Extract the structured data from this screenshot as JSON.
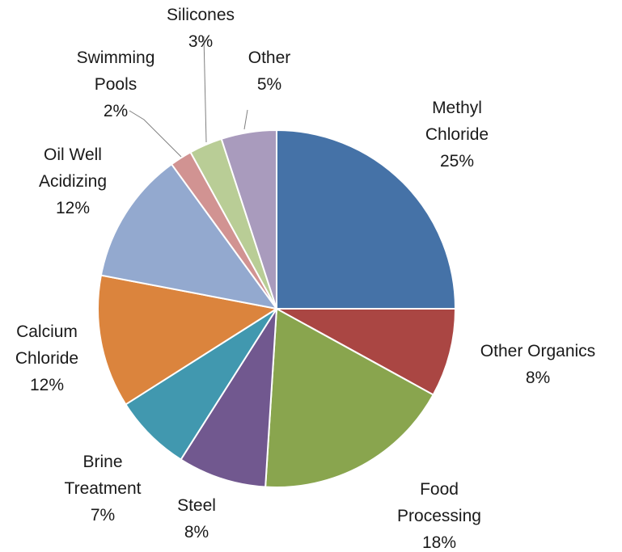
{
  "chart_data": {
    "type": "pie",
    "title": "",
    "unit": "%",
    "slices": [
      {
        "label": [
          "Methyl",
          "Chloride"
        ],
        "value": 25,
        "value_label": "25%",
        "color": "#4572A7"
      },
      {
        "label": [
          "Other Organics"
        ],
        "value": 8,
        "value_label": "8%",
        "color": "#AA4643"
      },
      {
        "label": [
          "Food",
          "Processing"
        ],
        "value": 18,
        "value_label": "18%",
        "color": "#89A54E"
      },
      {
        "label": [
          "Steel"
        ],
        "value": 8,
        "value_label": "8%",
        "color": "#71588F"
      },
      {
        "label": [
          "Brine",
          "Treatment"
        ],
        "value": 7,
        "value_label": "7%",
        "color": "#4198AF"
      },
      {
        "label": [
          "Calcium",
          "Chloride"
        ],
        "value": 12,
        "value_label": "12%",
        "color": "#DB843D"
      },
      {
        "label": [
          "Oil Well",
          "Acidizing"
        ],
        "value": 12,
        "value_label": "12%",
        "color": "#93A9CF"
      },
      {
        "label": [
          "Swimming",
          "Pools"
        ],
        "value": 2,
        "value_label": "2%",
        "color": "#D19392"
      },
      {
        "label": [
          "Silicones"
        ],
        "value": 3,
        "value_label": "3%",
        "color": "#B9CD96"
      },
      {
        "label": [
          "Other"
        ],
        "value": 5,
        "value_label": "5%",
        "color": "#A99BBD"
      }
    ],
    "start": "12 o'clock",
    "direction": "clockwise",
    "legend": "none",
    "data_labels": "outside"
  }
}
